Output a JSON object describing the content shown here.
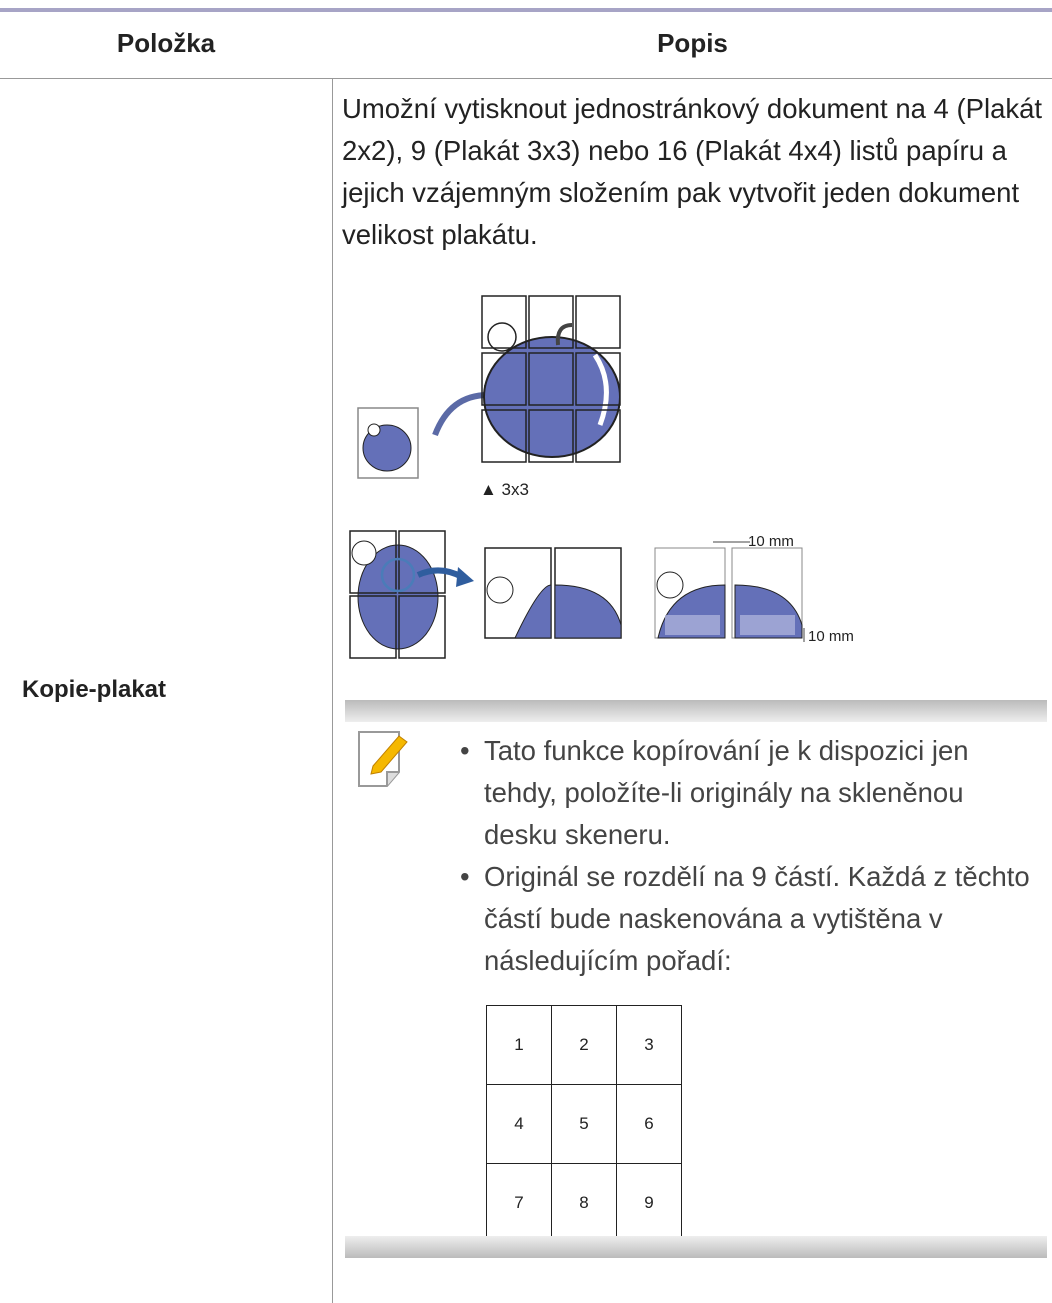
{
  "header": {
    "col1": "Položka",
    "col2": "Popis"
  },
  "row": {
    "item": "Kopie-plakat",
    "description": "Umožní vytisknout jednostránkový dokument na 4 (Plakát 2x2), 9 (Plakát 3x3) nebo 16 (Plakát 4x4) listů papíru a jejich vzájemným složením pak vytvořit jeden dokument velikost plakátu.",
    "figure": {
      "caption": "▲ 3x3",
      "margin_h": "10 mm",
      "margin_v": "10 mm"
    },
    "notes": [
      "Tato funkce kopírování je k dispozici jen tehdy, položíte-li originály na skleněnou desku skeneru.",
      "Originál se rozdělí na 9 částí. Každá z těchto částí bude naskenována a vytištěna v následujícím pořadí:"
    ],
    "order_grid": [
      [
        "1",
        "2",
        "3"
      ],
      [
        "4",
        "5",
        "6"
      ],
      [
        "7",
        "8",
        "9"
      ]
    ]
  }
}
